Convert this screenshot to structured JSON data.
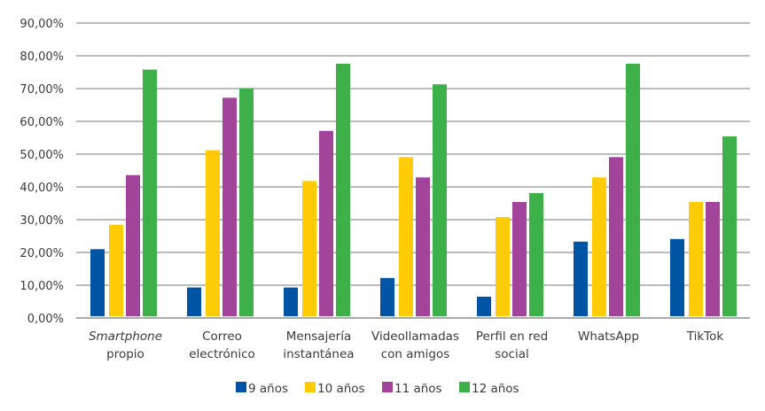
{
  "chart_data": {
    "type": "bar",
    "title": "",
    "xlabel": "",
    "ylabel": "",
    "ylim": [
      0,
      90
    ],
    "y_ticks": [
      "0,00%",
      "10,00%",
      "20,00%",
      "30,00%",
      "40,00%",
      "50,00%",
      "60,00%",
      "70,00%",
      "80,00%",
      "90,00%"
    ],
    "grid": true,
    "legend_position": "bottom",
    "categories": [
      {
        "lines": [
          "Smartphone",
          "propio"
        ],
        "italic_first": true
      },
      {
        "lines": [
          "Correo",
          "electrónico"
        ]
      },
      {
        "lines": [
          "Mensajería",
          "instantánea"
        ]
      },
      {
        "lines": [
          "Videollamadas",
          "con amigos"
        ]
      },
      {
        "lines": [
          "Perfil en red",
          "social"
        ]
      },
      {
        "lines": [
          "WhatsApp"
        ]
      },
      {
        "lines": [
          "TikTok"
        ]
      }
    ],
    "series": [
      {
        "name": "9 años",
        "color": "#0054a4",
        "values": [
          21.0,
          9.3,
          9.3,
          12.2,
          6.5,
          23.3,
          24.1
        ]
      },
      {
        "name": "10 años",
        "color": "#ffcb05",
        "values": [
          28.4,
          51.2,
          41.8,
          49.1,
          30.8,
          42.9,
          35.4
        ]
      },
      {
        "name": "11 años",
        "color": "#a2449a",
        "values": [
          43.6,
          67.2,
          57.1,
          42.9,
          35.4,
          49.1,
          35.4
        ]
      },
      {
        "name": "12 años",
        "color": "#3eb049",
        "values": [
          75.8,
          70.0,
          77.6,
          71.3,
          38.1,
          77.6,
          55.4
        ]
      }
    ]
  }
}
